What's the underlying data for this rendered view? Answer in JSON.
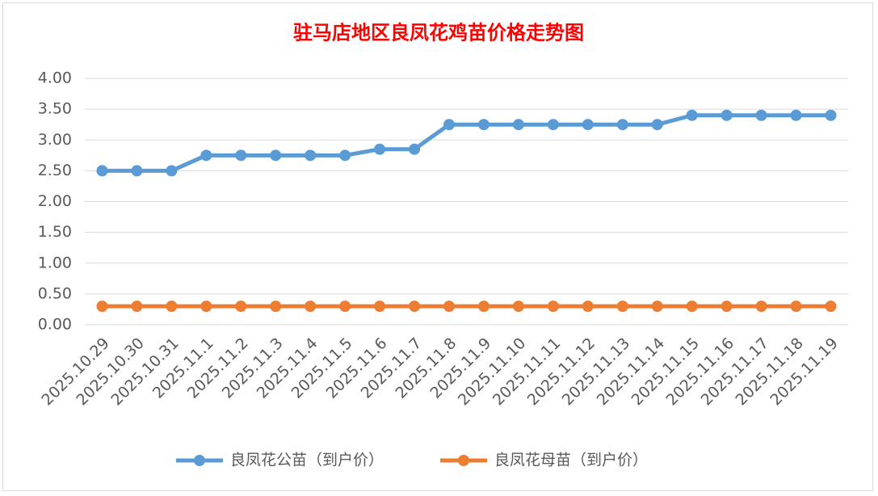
{
  "chart_data": {
    "type": "line",
    "title": "驻马店地区良凤花鸡苗价格走势图",
    "categories": [
      "2025.10.29",
      "2025.10.30",
      "2025.10.31",
      "2025.11.1",
      "2025.11.2",
      "2025.11.3",
      "2025.11.4",
      "2025.11.5",
      "2025.11.6",
      "2025.11.7",
      "2025.11.8",
      "2025.11.9",
      "2025.11.10",
      "2025.11.11",
      "2025.11.12",
      "2025.11.13",
      "2025.11.14",
      "2025.11.15",
      "2025.11.16",
      "2025.11.17",
      "2025.11.18",
      "2025.11.19"
    ],
    "series": [
      {
        "name": "良凤花公苗（到户价）",
        "color": "#5b9bd5",
        "values": [
          2.5,
          2.5,
          2.5,
          2.75,
          2.75,
          2.75,
          2.75,
          2.75,
          2.85,
          2.85,
          3.25,
          3.25,
          3.25,
          3.25,
          3.25,
          3.25,
          3.25,
          3.4,
          3.4,
          3.4,
          3.4,
          3.4
        ]
      },
      {
        "name": "良凤花母苗（到户价）",
        "color": "#ed7d31",
        "values": [
          0.3,
          0.3,
          0.3,
          0.3,
          0.3,
          0.3,
          0.3,
          0.3,
          0.3,
          0.3,
          0.3,
          0.3,
          0.3,
          0.3,
          0.3,
          0.3,
          0.3,
          0.3,
          0.3,
          0.3,
          0.3,
          0.3
        ]
      }
    ],
    "ylim": [
      0,
      4
    ],
    "yticks": [
      {
        "value": 0,
        "label": "0.00"
      },
      {
        "value": 0.5,
        "label": "0.50"
      },
      {
        "value": 1,
        "label": "1.00"
      },
      {
        "value": 1.5,
        "label": "1.50"
      },
      {
        "value": 2,
        "label": "2.00"
      },
      {
        "value": 2.5,
        "label": "2.50"
      },
      {
        "value": 3,
        "label": "3.00"
      },
      {
        "value": 3.5,
        "label": "3.50"
      },
      {
        "value": 4,
        "label": "4.00"
      }
    ],
    "grid": true,
    "legend": "bottom"
  }
}
